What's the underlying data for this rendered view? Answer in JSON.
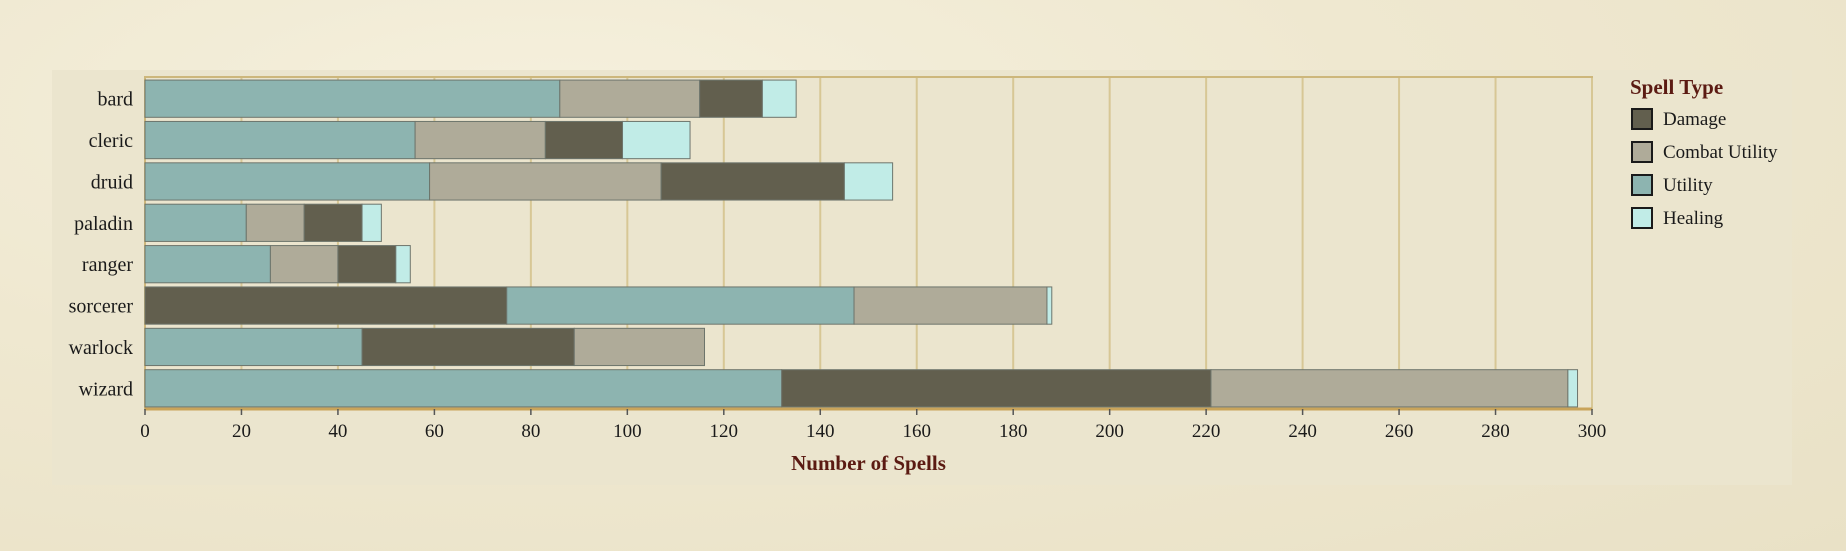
{
  "chart_data": {
    "type": "bar",
    "orientation": "horizontal",
    "stacked": true,
    "categories": [
      "bard",
      "cleric",
      "druid",
      "paladin",
      "ranger",
      "sorcerer",
      "warlock",
      "wizard"
    ],
    "segments": [
      [
        {
          "type": "Utility",
          "value": 86
        },
        {
          "type": "Combat Utility",
          "value": 29
        },
        {
          "type": "Damage",
          "value": 13
        },
        {
          "type": "Healing",
          "value": 7
        }
      ],
      [
        {
          "type": "Utility",
          "value": 56
        },
        {
          "type": "Combat Utility",
          "value": 27
        },
        {
          "type": "Damage",
          "value": 16
        },
        {
          "type": "Healing",
          "value": 14
        }
      ],
      [
        {
          "type": "Utility",
          "value": 59
        },
        {
          "type": "Combat Utility",
          "value": 48
        },
        {
          "type": "Damage",
          "value": 38
        },
        {
          "type": "Healing",
          "value": 10
        }
      ],
      [
        {
          "type": "Utility",
          "value": 21
        },
        {
          "type": "Combat Utility",
          "value": 12
        },
        {
          "type": "Damage",
          "value": 12
        },
        {
          "type": "Healing",
          "value": 4
        }
      ],
      [
        {
          "type": "Utility",
          "value": 26
        },
        {
          "type": "Combat Utility",
          "value": 14
        },
        {
          "type": "Damage",
          "value": 12
        },
        {
          "type": "Healing",
          "value": 3
        }
      ],
      [
        {
          "type": "Damage",
          "value": 75
        },
        {
          "type": "Utility",
          "value": 72
        },
        {
          "type": "Combat Utility",
          "value": 40
        },
        {
          "type": "Healing",
          "value": 1
        }
      ],
      [
        {
          "type": "Utility",
          "value": 45
        },
        {
          "type": "Damage",
          "value": 44
        },
        {
          "type": "Combat Utility",
          "value": 27
        }
      ],
      [
        {
          "type": "Utility",
          "value": 132
        },
        {
          "type": "Damage",
          "value": 89
        },
        {
          "type": "Combat Utility",
          "value": 74
        },
        {
          "type": "Healing",
          "value": 2
        }
      ]
    ],
    "xlabel": "Number of Spells",
    "xlim": [
      0,
      300
    ],
    "xticks": [
      0,
      20,
      40,
      60,
      80,
      100,
      120,
      140,
      160,
      180,
      200,
      220,
      240,
      260,
      280,
      300
    ],
    "grid": "vertical",
    "legend": {
      "title": "Spell Type",
      "position": "right",
      "entries": [
        "Damage",
        "Combat Utility",
        "Utility",
        "Healing"
      ]
    },
    "colors": {
      "Damage": "#625f4e",
      "Combat Utility": "#afab99",
      "Utility": "#8db4b0",
      "Healing": "#c1ece7"
    }
  }
}
